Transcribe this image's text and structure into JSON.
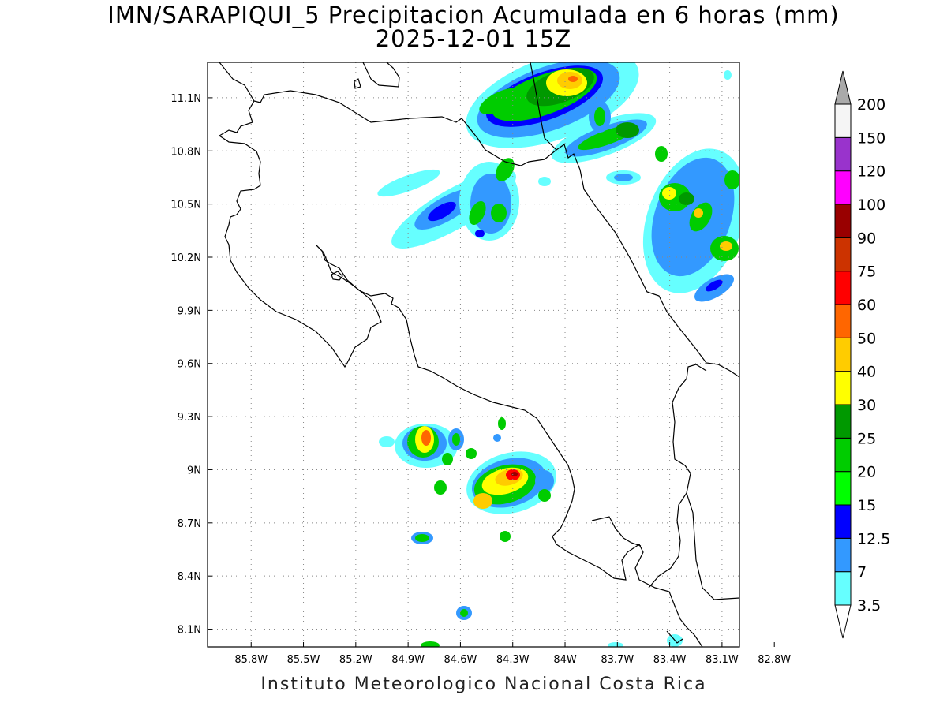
{
  "title_line1": "IMN/SARAPIQUI_5 Precipitacion Acumulada en 6 horas (mm)",
  "title_line2": "2025-12-01 15Z",
  "footer": "Instituto Meteorologico Nacional Costa Rica",
  "map": {
    "lon_range": [
      -86.05,
      -83.0
    ],
    "lat_range": [
      8.0,
      11.3
    ],
    "lon_ticks": [
      {
        "value": -85.8,
        "label": "85.8W"
      },
      {
        "value": -85.5,
        "label": "85.5W"
      },
      {
        "value": -85.2,
        "label": "85.2W"
      },
      {
        "value": -84.9,
        "label": "84.9W"
      },
      {
        "value": -84.6,
        "label": "84.6W"
      },
      {
        "value": -84.3,
        "label": "84.3W"
      },
      {
        "value": -84.0,
        "label": "84W"
      },
      {
        "value": -83.7,
        "label": "83.7W"
      },
      {
        "value": -83.4,
        "label": "83.4W"
      },
      {
        "value": -83.1,
        "label": "83.1W"
      },
      {
        "value": -82.8,
        "label": "82.8W"
      }
    ],
    "lat_ticks": [
      {
        "value": 11.1,
        "label": "11.1N"
      },
      {
        "value": 10.8,
        "label": "10.8N"
      },
      {
        "value": 10.5,
        "label": "10.5N"
      },
      {
        "value": 10.2,
        "label": "10.2N"
      },
      {
        "value": 9.9,
        "label": "9.9N"
      },
      {
        "value": 9.6,
        "label": "9.6N"
      },
      {
        "value": 9.3,
        "label": "9.3N"
      },
      {
        "value": 9.0,
        "label": "9N"
      },
      {
        "value": 8.7,
        "label": "8.7N"
      },
      {
        "value": 8.4,
        "label": "8.4N"
      },
      {
        "value": 8.1,
        "label": "8.1N"
      }
    ],
    "grid": "dotted"
  },
  "colorbar": {
    "levels": [
      {
        "label": "3.5",
        "color": "#66ffff"
      },
      {
        "label": "7",
        "color": "#3399ff"
      },
      {
        "label": "12.5",
        "color": "#0000ff"
      },
      {
        "label": "15",
        "color": "#00ff00"
      },
      {
        "label": "20",
        "color": "#00cc00"
      },
      {
        "label": "25",
        "color": "#009900"
      },
      {
        "label": "30",
        "color": "#ffff00"
      },
      {
        "label": "40",
        "color": "#ffcc00"
      },
      {
        "label": "50",
        "color": "#ff6600"
      },
      {
        "label": "60",
        "color": "#ff0000"
      },
      {
        "label": "75",
        "color": "#cc3300"
      },
      {
        "label": "90",
        "color": "#990000"
      },
      {
        "label": "100",
        "color": "#ff00ff"
      },
      {
        "label": "120",
        "color": "#9933cc"
      },
      {
        "label": "150",
        "color": "#f5f5f5"
      },
      {
        "label": "200",
        "color": "#aaaaaa"
      }
    ],
    "under_color": "#ffffff",
    "over_color": "#aaaaaa"
  }
}
